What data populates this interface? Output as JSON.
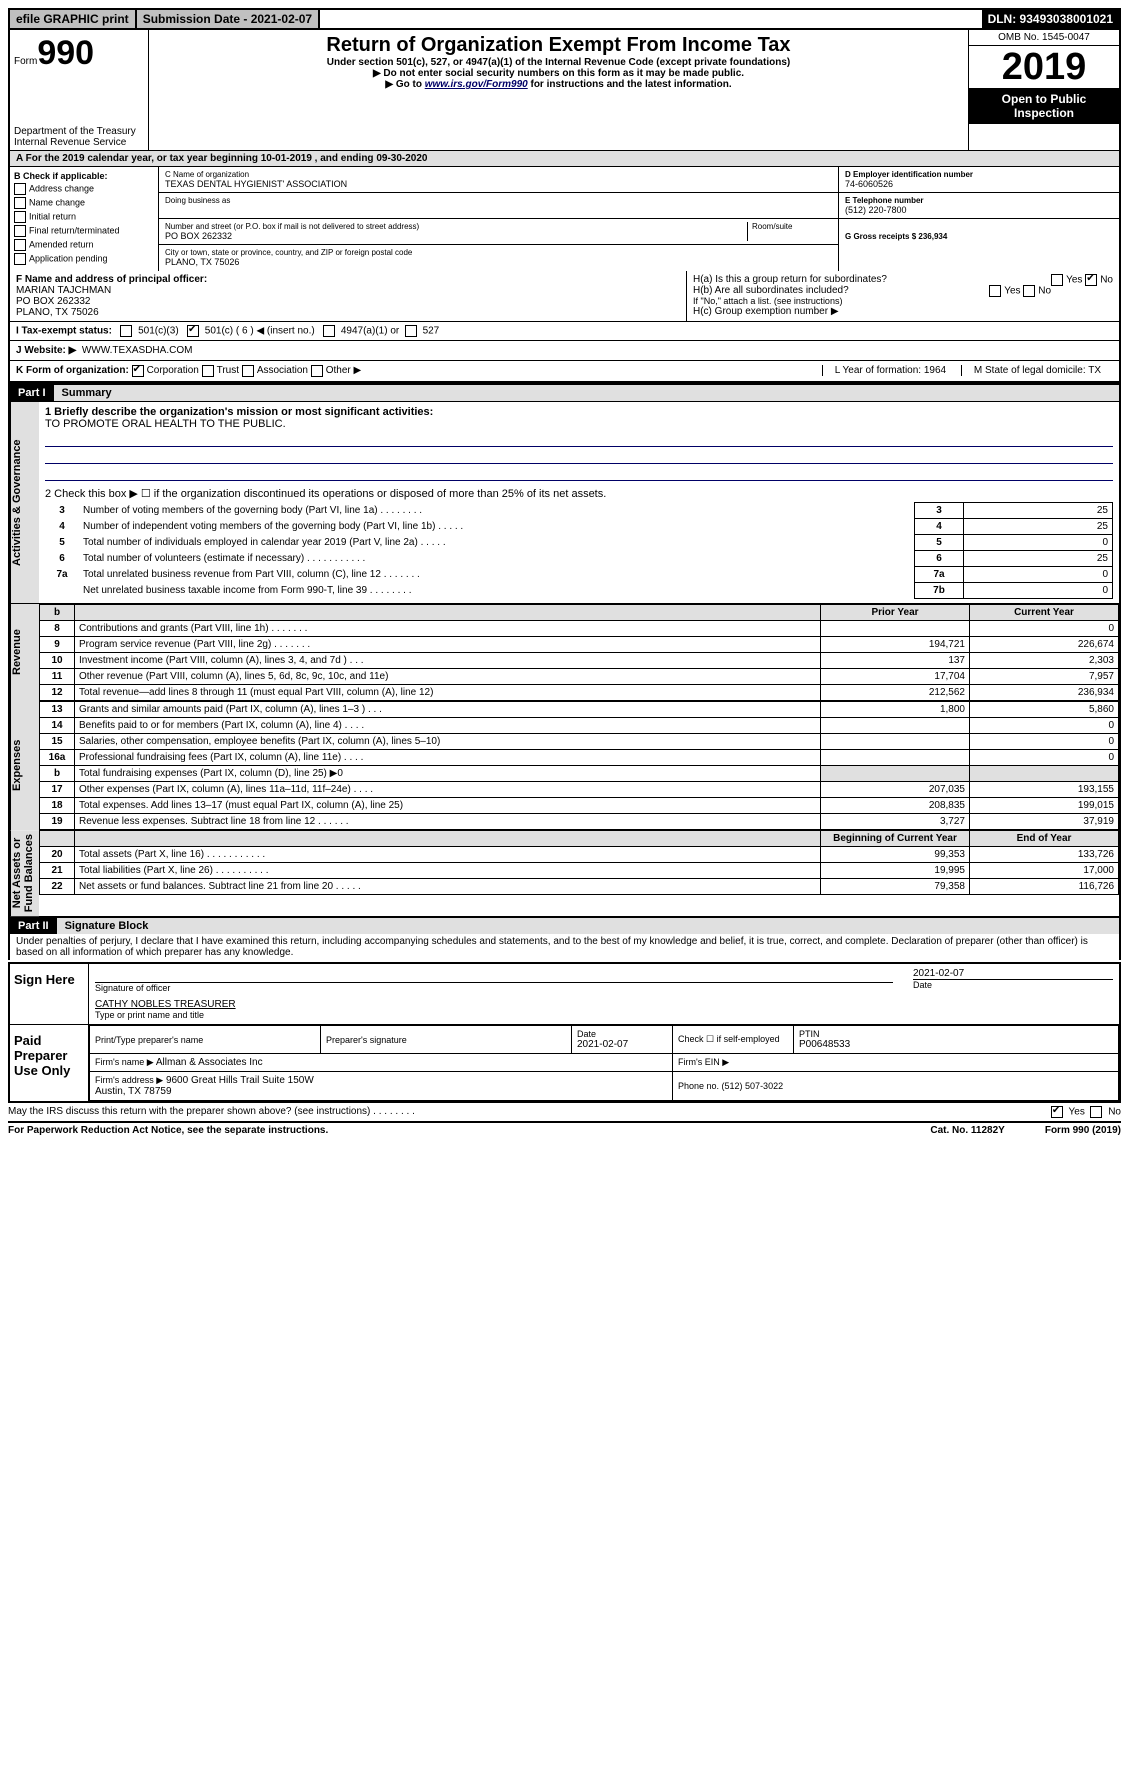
{
  "topbar": {
    "efile": "efile GRAPHIC print",
    "submission_label": "Submission Date - 2021-02-07",
    "dln": "DLN: 93493038001021"
  },
  "header": {
    "form_prefix": "Form",
    "form_number": "990",
    "title": "Return of Organization Exempt From Income Tax",
    "subtitle": "Under section 501(c), 527, or 4947(a)(1) of the Internal Revenue Code (except private foundations)",
    "note1": "▶ Do not enter social security numbers on this form as it may be made public.",
    "note2_pre": "▶ Go to ",
    "note2_link": "www.irs.gov/Form990",
    "note2_post": " for instructions and the latest information.",
    "omb": "OMB No. 1545-0047",
    "year": "2019",
    "open": "Open to Public Inspection",
    "dept": "Department of the Treasury\nInternal Revenue Service"
  },
  "a_row": "A For the 2019 calendar year, or tax year beginning 10-01-2019    , and ending 09-30-2020",
  "b": {
    "title": "B Check if applicable:",
    "items": [
      "Address change",
      "Name change",
      "Initial return",
      "Final return/terminated",
      "Amended return",
      "Application pending"
    ]
  },
  "c": {
    "name_lbl": "C Name of organization",
    "name": "TEXAS DENTAL HYGIENIST' ASSOCIATION",
    "dba_lbl": "Doing business as",
    "street_lbl": "Number and street (or P.O. box if mail is not delivered to street address)",
    "room_lbl": "Room/suite",
    "street": "PO BOX 262332",
    "city_lbl": "City or town, state or province, country, and ZIP or foreign postal code",
    "city": "PLANO, TX  75026"
  },
  "d": {
    "ein_lbl": "D Employer identification number",
    "ein": "74-6060526",
    "phone_lbl": "E Telephone number",
    "phone": "(512) 220-7800",
    "gross_lbl": "G Gross receipts $ 236,934"
  },
  "f": {
    "lbl": "F Name and address of principal officer:",
    "name": "MARIAN TAJCHMAN",
    "addr1": "PO BOX 262332",
    "addr2": "PLANO, TX  75026"
  },
  "h": {
    "a": "H(a)  Is this a group return for subordinates?",
    "b": "H(b)  Are all subordinates included?",
    "b_note": "If \"No,\" attach a list. (see instructions)",
    "c": "H(c)  Group exemption number ▶",
    "yes": "Yes",
    "no": "No"
  },
  "i": {
    "lbl": "I  Tax-exempt status:",
    "opts": [
      "501(c)(3)",
      "501(c) ( 6 ) ◀ (insert no.)",
      "4947(a)(1) or",
      "527"
    ]
  },
  "j": {
    "lbl": "J  Website: ▶",
    "val": "WWW.TEXASDHA.COM"
  },
  "k": {
    "lbl": "K Form of organization:",
    "opts": [
      "Corporation",
      "Trust",
      "Association",
      "Other ▶"
    ],
    "l": "L Year of formation: 1964",
    "m": "M State of legal domicile: TX"
  },
  "part1": {
    "hdr": "Part I",
    "title": "Summary"
  },
  "gov": {
    "line1_lbl": "1  Briefly describe the organization's mission or most significant activities:",
    "mission": "TO PROMOTE ORAL HEALTH TO THE PUBLIC.",
    "line2": "2  Check this box ▶ ☐  if the organization discontinued its operations or disposed of more than 25% of its net assets.",
    "rows": [
      {
        "n": "3",
        "d": "Number of voting members of the governing body (Part VI, line 1a)   .   .   .   .   .   .   .   .",
        "c": "3",
        "v": "25"
      },
      {
        "n": "4",
        "d": "Number of independent voting members of the governing body (Part VI, line 1b)   .   .   .   .   .",
        "c": "4",
        "v": "25"
      },
      {
        "n": "5",
        "d": "Total number of individuals employed in calendar year 2019 (Part V, line 2a)   .   .   .   .   .",
        "c": "5",
        "v": "0"
      },
      {
        "n": "6",
        "d": "Total number of volunteers (estimate if necessary)   .   .   .   .   .   .   .   .   .   .   .",
        "c": "6",
        "v": "25"
      },
      {
        "n": "7a",
        "d": "Total unrelated business revenue from Part VIII, column (C), line 12   .   .   .   .   .   .   .",
        "c": "7a",
        "v": "0"
      },
      {
        "n": "",
        "d": "Net unrelated business taxable income from Form 990-T, line 39   .   .   .   .   .   .   .   .",
        "c": "7b",
        "v": "0"
      }
    ]
  },
  "fin_hdr": {
    "b": "b",
    "prior": "Prior Year",
    "current": "Current Year"
  },
  "revenue": [
    {
      "n": "8",
      "d": "Contributions and grants (Part VIII, line 1h)   .   .   .   .   .   .   .",
      "p": "",
      "c": "0"
    },
    {
      "n": "9",
      "d": "Program service revenue (Part VIII, line 2g)   .   .   .   .   .   .   .",
      "p": "194,721",
      "c": "226,674"
    },
    {
      "n": "10",
      "d": "Investment income (Part VIII, column (A), lines 3, 4, and 7d )   .   .   .",
      "p": "137",
      "c": "2,303"
    },
    {
      "n": "11",
      "d": "Other revenue (Part VIII, column (A), lines 5, 6d, 8c, 9c, 10c, and 11e)",
      "p": "17,704",
      "c": "7,957"
    },
    {
      "n": "12",
      "d": "Total revenue—add lines 8 through 11 (must equal Part VIII, column (A), line 12)",
      "p": "212,562",
      "c": "236,934"
    }
  ],
  "expenses": [
    {
      "n": "13",
      "d": "Grants and similar amounts paid (Part IX, column (A), lines 1–3 )   .   .   .",
      "p": "1,800",
      "c": "5,860"
    },
    {
      "n": "14",
      "d": "Benefits paid to or for members (Part IX, column (A), line 4)   .   .   .   .",
      "p": "",
      "c": "0"
    },
    {
      "n": "15",
      "d": "Salaries, other compensation, employee benefits (Part IX, column (A), lines 5–10)",
      "p": "",
      "c": "0"
    },
    {
      "n": "16a",
      "d": "Professional fundraising fees (Part IX, column (A), line 11e)   .   .   .   .",
      "p": "",
      "c": "0"
    },
    {
      "n": "b",
      "d": "Total fundraising expenses (Part IX, column (D), line 25) ▶0",
      "p": "shade",
      "c": "shade"
    },
    {
      "n": "17",
      "d": "Other expenses (Part IX, column (A), lines 11a–11d, 11f–24e)   .   .   .   .",
      "p": "207,035",
      "c": "193,155"
    },
    {
      "n": "18",
      "d": "Total expenses. Add lines 13–17 (must equal Part IX, column (A), line 25)",
      "p": "208,835",
      "c": "199,015"
    },
    {
      "n": "19",
      "d": "Revenue less expenses. Subtract line 18 from line 12   .   .   .   .   .   .",
      "p": "3,727",
      "c": "37,919"
    }
  ],
  "na_hdr": {
    "begin": "Beginning of Current Year",
    "end": "End of Year"
  },
  "netassets": [
    {
      "n": "20",
      "d": "Total assets (Part X, line 16)   .   .   .   .   .   .   .   .   .   .   .",
      "p": "99,353",
      "c": "133,726"
    },
    {
      "n": "21",
      "d": "Total liabilities (Part X, line 26)   .   .   .   .   .   .   .   .   .   .",
      "p": "19,995",
      "c": "17,000"
    },
    {
      "n": "22",
      "d": "Net assets or fund balances. Subtract line 21 from line 20   .   .   .   .   .",
      "p": "79,358",
      "c": "116,726"
    }
  ],
  "side": {
    "gov": "Activities & Governance",
    "rev": "Revenue",
    "exp": "Expenses",
    "na": "Net Assets or\nFund Balances"
  },
  "part2": {
    "hdr": "Part II",
    "title": "Signature Block"
  },
  "penalty": "Under penalties of perjury, I declare that I have examined this return, including accompanying schedules and statements, and to the best of my knowledge and belief, it is true, correct, and complete. Declaration of preparer (other than officer) is based on all information of which preparer has any knowledge.",
  "sign": {
    "here": "Sign Here",
    "sig_lbl": "Signature of officer",
    "date": "2021-02-07",
    "date_lbl": "Date",
    "name": "CATHY NOBLES  TREASURER",
    "name_lbl": "Type or print name and title"
  },
  "paid": {
    "title": "Paid Preparer Use Only",
    "print_lbl": "Print/Type preparer's name",
    "sig_lbl": "Preparer's signature",
    "date_lbl": "Date",
    "date": "2021-02-07",
    "check_lbl": "Check ☐ if self-employed",
    "ptin_lbl": "PTIN",
    "ptin": "P00648533",
    "firm_name_lbl": "Firm's name    ▶",
    "firm_name": "Allman & Associates Inc",
    "firm_ein_lbl": "Firm's EIN ▶",
    "firm_addr_lbl": "Firm's address ▶",
    "firm_addr": "9600 Great Hills Trail Suite 150W\nAustin, TX  78759",
    "phone_lbl": "Phone no. (512) 507-3022"
  },
  "discuss": "May the IRS discuss this return with the preparer shown above? (see instructions)   .   .   .   .   .   .   .   .",
  "footer": {
    "left": "For Paperwork Reduction Act Notice, see the separate instructions.",
    "mid": "Cat. No. 11282Y",
    "right": "Form 990 (2019)"
  }
}
